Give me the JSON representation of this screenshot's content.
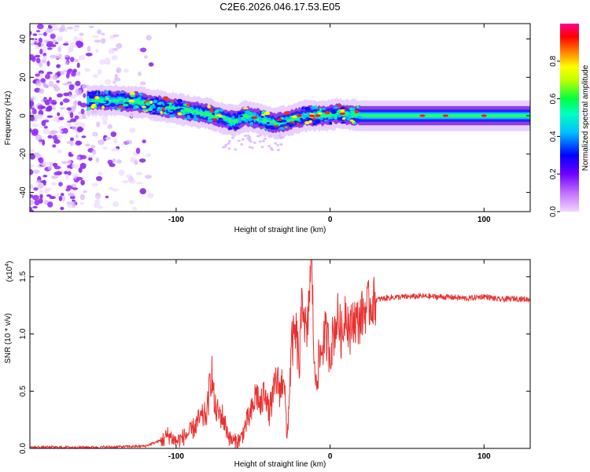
{
  "title": "C2E6.2026.046.17.53.E05",
  "chart_data": [
    {
      "type": "heatmap",
      "name": "spectrogram",
      "title": "C2E6.2026.046.17.53.E05",
      "xlabel": "Height of straight line (km)",
      "ylabel": "Frequency (Hz)",
      "xlim": [
        -195,
        130
      ],
      "ylim": [
        -50,
        48
      ],
      "x_ticks": [
        -100,
        0,
        100
      ],
      "x_tick_labels": [
        "-100",
        "0",
        "100"
      ],
      "y_ticks": [
        -40,
        -20,
        0,
        20,
        40
      ],
      "y_tick_labels": [
        "-40",
        "-20",
        "0",
        "20",
        "40"
      ],
      "colorbar": {
        "label": "Normalized spectral amplitude",
        "range": [
          0,
          1
        ],
        "ticks": [
          0.0,
          0.2,
          0.4,
          0.6,
          0.8
        ],
        "tick_labels": [
          "0.0",
          "0.2",
          "0.4",
          "0.6",
          "0.8"
        ],
        "colors": [
          "#f2d6ff",
          "#9b30ff",
          "#0000ff",
          "#00bfff",
          "#00ff80",
          "#ffff00",
          "#ff8000",
          "#ff0000",
          "#ff00a0"
        ]
      },
      "ridge_center_hz": [
        {
          "x": -155,
          "y": 8
        },
        {
          "x": -140,
          "y": 8
        },
        {
          "x": -125,
          "y": 7
        },
        {
          "x": -110,
          "y": 5
        },
        {
          "x": -95,
          "y": 3
        },
        {
          "x": -80,
          "y": 1
        },
        {
          "x": -70,
          "y": -1
        },
        {
          "x": -62,
          "y": -3
        },
        {
          "x": -55,
          "y": 0
        },
        {
          "x": -45,
          "y": -2
        },
        {
          "x": -35,
          "y": -4
        },
        {
          "x": -25,
          "y": -2
        },
        {
          "x": -15,
          "y": 0
        },
        {
          "x": -5,
          "y": 0
        },
        {
          "x": 5,
          "y": 1
        },
        {
          "x": 20,
          "y": 0
        },
        {
          "x": 50,
          "y": 0
        },
        {
          "x": 80,
          "y": 0
        },
        {
          "x": 110,
          "y": 0
        },
        {
          "x": 130,
          "y": 0
        }
      ],
      "noise_region_km": [
        -195,
        -115
      ]
    },
    {
      "type": "line",
      "name": "snr",
      "xlabel": "Height of straight line (km)",
      "ylabel": "SNR (10 * v/v)",
      "y_scale_label": "(x10",
      "y_scale_exponent": "4",
      "xlim": [
        -195,
        130
      ],
      "ylim": [
        0,
        1.65
      ],
      "x_ticks": [
        -100,
        0,
        100
      ],
      "x_tick_labels": [
        "-100",
        "0",
        "100"
      ],
      "y_ticks": [
        0.0,
        0.5,
        1.0,
        1.5
      ],
      "y_tick_labels": [
        "0.0",
        "0.5",
        "1.0",
        "1.5"
      ],
      "color": "#e8312f",
      "series": [
        {
          "name": "SNR",
          "x": [
            -195,
            -150,
            -120,
            -108,
            -105,
            -100,
            -95,
            -90,
            -85,
            -80,
            -77,
            -75,
            -72,
            -70,
            -65,
            -62,
            -58,
            -55,
            -50,
            -48,
            -45,
            -42,
            -40,
            -37,
            -35,
            -32,
            -30,
            -28,
            -25,
            -22,
            -20,
            -18,
            -15,
            -13,
            -12,
            -10,
            -8,
            -5,
            -3,
            0,
            3,
            5,
            8,
            10,
            13,
            15,
            18,
            22,
            25,
            30,
            40,
            60,
            80,
            90,
            100,
            110,
            120,
            130
          ],
          "y": [
            0.01,
            0.01,
            0.02,
            0.08,
            0.12,
            0.06,
            0.1,
            0.15,
            0.25,
            0.3,
            0.7,
            0.35,
            0.3,
            0.28,
            0.08,
            0.06,
            0.08,
            0.2,
            0.35,
            0.5,
            0.35,
            0.55,
            0.3,
            0.45,
            0.6,
            0.5,
            0.7,
            0.05,
            0.9,
            1.0,
            0.7,
            1.35,
            0.9,
            1.5,
            1.65,
            0.6,
            0.7,
            0.9,
            1.0,
            0.85,
            1.05,
            1.15,
            0.95,
            1.25,
            1.0,
            1.15,
            1.1,
            1.2,
            1.25,
            1.3,
            1.32,
            1.33,
            1.32,
            1.31,
            1.33,
            1.3,
            1.31,
            1.3
          ]
        }
      ]
    }
  ]
}
